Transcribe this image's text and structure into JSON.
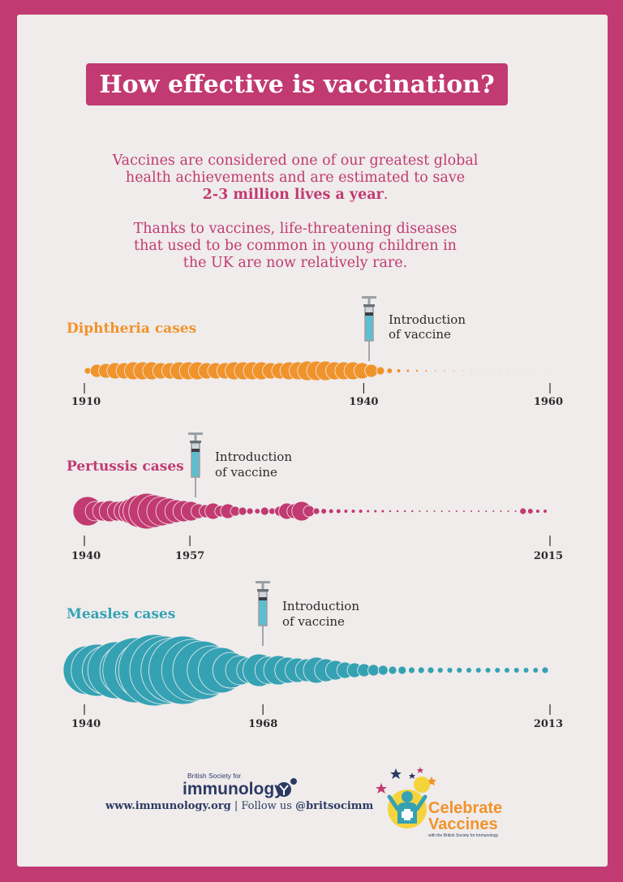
{
  "title": "How effective is vaccination?",
  "intro": {
    "line1": "Vaccines are considered one of our greatest global",
    "line2": "health achievements and are estimated to save",
    "highlight": "2-3 million lives a year",
    "period": ".",
    "para2_line1": "Thanks to vaccines, life-threatening diseases",
    "para2_line2": "that used to be common in young children in",
    "para2_line3": "the UK are now relatively rare."
  },
  "colors": {
    "brand": "#c23a72",
    "diphtheria": "#f0932b",
    "pertussis": "#c23a72",
    "measles": "#35a2b4",
    "text_dark": "#2b2b2b"
  },
  "vaccine_label_line1": "Introduction",
  "vaccine_label_line2": "of vaccine",
  "chart_data": [
    {
      "type": "bubble-timeline",
      "title": "Diphtheria cases",
      "tick_labels": [
        "1910",
        "1940",
        "1960"
      ],
      "tick_years": [
        1910,
        1940,
        1960
      ],
      "x_range": [
        1910,
        1960
      ],
      "vaccine_year": 1940,
      "relative_sizes": [
        4,
        8,
        9,
        10,
        10,
        11,
        11,
        11,
        10,
        10,
        11,
        11,
        11,
        10,
        10,
        10,
        11,
        11,
        11,
        11,
        10,
        10,
        11,
        11,
        12,
        12,
        12,
        11,
        11,
        11,
        10,
        8,
        5,
        3,
        2,
        1.5,
        1.2,
        1,
        0.8,
        0.7,
        0.6,
        0.5,
        0.5,
        0.4,
        0.4,
        0.4,
        0.4,
        0.4,
        0.4,
        0.4,
        0.4
      ],
      "color": "#f0932b"
    },
    {
      "type": "bubble-timeline",
      "title": "Pertussis cases",
      "tick_labels": [
        "1940",
        "1957",
        "2015"
      ],
      "tick_years": [
        1940,
        1957,
        2015
      ],
      "x_range": [
        1940,
        2015
      ],
      "vaccine_year": 1957,
      "relative_sizes": [
        18,
        12,
        12,
        13,
        12,
        13,
        16,
        20,
        22,
        20,
        18,
        16,
        14,
        13,
        12,
        9,
        8,
        10,
        7,
        9,
        6,
        5,
        4,
        3,
        5,
        4,
        6,
        10,
        9,
        12,
        7,
        4,
        3,
        2.5,
        2.5,
        2,
        2,
        2,
        1.5,
        1.5,
        1.5,
        1.2,
        1.2,
        1.2,
        1.2,
        1,
        1,
        1,
        1,
        1,
        1,
        1,
        1,
        1,
        1,
        1,
        1,
        1,
        1,
        4,
        3,
        2,
        2
      ],
      "color": "#c23a72"
    },
    {
      "type": "bubble-timeline",
      "title": "Measles cases",
      "tick_labels": [
        "1940",
        "1968",
        "2013"
      ],
      "tick_years": [
        1940,
        1968,
        2013
      ],
      "x_range": [
        1940,
        2013
      ],
      "vaccine_year": 1968,
      "relative_sizes": [
        30,
        32,
        30,
        35,
        32,
        40,
        36,
        44,
        42,
        40,
        42,
        38,
        36,
        30,
        28,
        22,
        18,
        16,
        20,
        17,
        18,
        16,
        15,
        14,
        16,
        14,
        12,
        10,
        9,
        8,
        7,
        6,
        5,
        5,
        4,
        4,
        4,
        3.5,
        3.5,
        3.5,
        3,
        3,
        3,
        3,
        3,
        3,
        3,
        3,
        4
      ],
      "color": "#35a2b4"
    }
  ],
  "footer": {
    "bsi_small": "British Society for",
    "bsi_name": "immunology",
    "url": "www.immunology.org",
    "separator": " | Follow us ",
    "handle": "@britsocimm",
    "cv_line1": "Celebrate",
    "cv_line2": "Vaccines",
    "cv_tag": "with the British Society for Immunology"
  }
}
